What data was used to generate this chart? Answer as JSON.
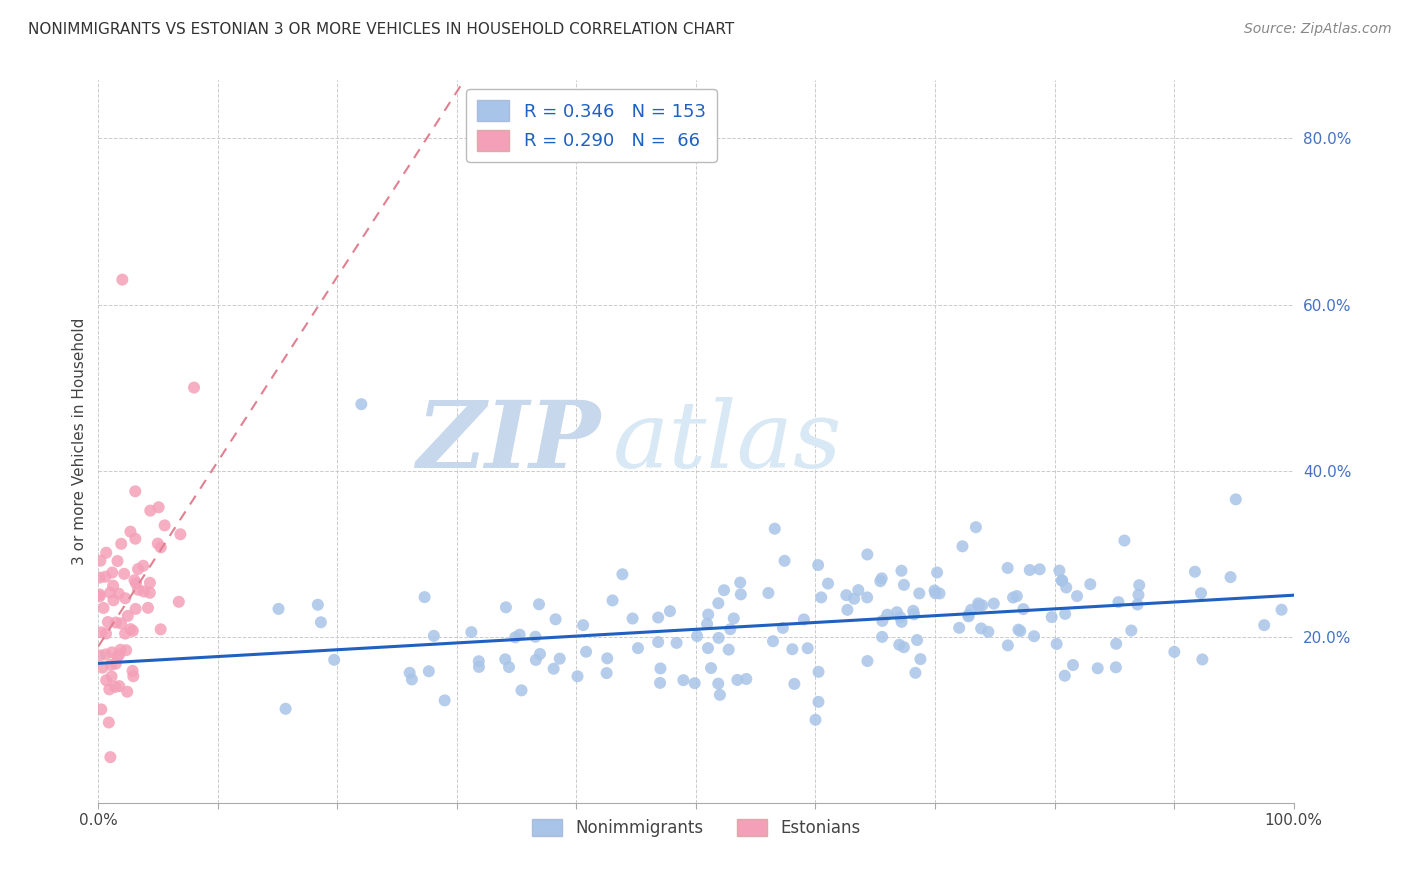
{
  "title": "NONIMMIGRANTS VS ESTONIAN 3 OR MORE VEHICLES IN HOUSEHOLD CORRELATION CHART",
  "source": "Source: ZipAtlas.com",
  "ylabel": "3 or more Vehicles in Household",
  "xlim": [
    0.0,
    1.0
  ],
  "ylim": [
    0.0,
    0.87
  ],
  "xtick_positions": [
    0.0,
    0.1,
    0.2,
    0.3,
    0.4,
    0.5,
    0.6,
    0.7,
    0.8,
    0.9,
    1.0
  ],
  "xtick_labels": [
    "0.0%",
    "",
    "",
    "",
    "",
    "",
    "",
    "",
    "",
    "",
    "100.0%"
  ],
  "ytick_positions": [
    0.0,
    0.2,
    0.4,
    0.6,
    0.8
  ],
  "ytick_labels": [
    "",
    "20.0%",
    "40.0%",
    "60.0%",
    "80.0%"
  ],
  "blue_R": 0.346,
  "blue_N": 153,
  "pink_R": 0.29,
  "pink_N": 66,
  "blue_color": "#a8c4e8",
  "pink_color": "#f4a0b8",
  "blue_line_color": "#2060c0",
  "pink_line_color": "#e08090",
  "legend_text_color": "#2060c0",
  "watermark_zip": "ZIP",
  "watermark_atlas": "atlas",
  "background_color": "#ffffff",
  "grid_color": "#cccccc",
  "title_fontsize": 11,
  "source_fontsize": 10,
  "tick_fontsize": 11,
  "legend_fontsize": 13
}
